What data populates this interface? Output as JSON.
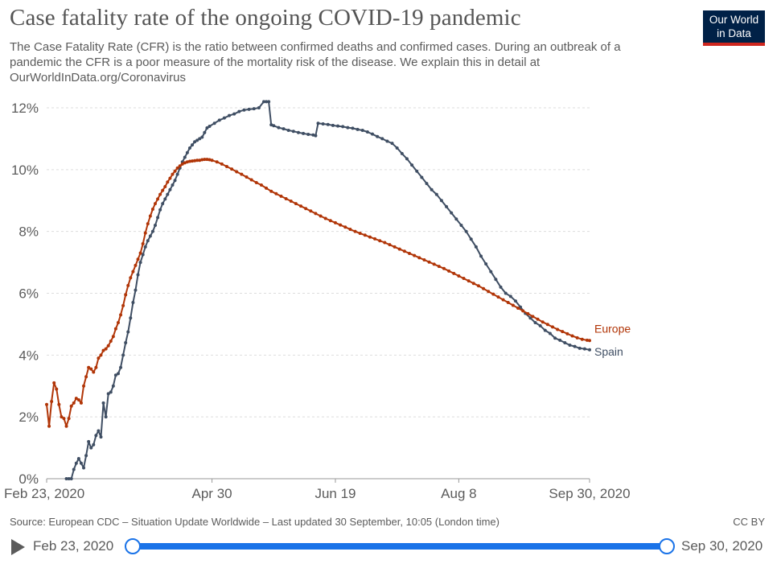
{
  "header": {
    "title": "Case fatality rate of the ongoing COVID-19 pandemic",
    "subtitle": "The Case Fatality Rate (CFR) is the ratio between confirmed deaths and confirmed cases. During an outbreak of a pandemic the CFR is a poor measure of the mortality risk of the disease. We explain this in detail at OurWorldInData.org/Coronavirus",
    "logo_line1": "Our World",
    "logo_line2": "in Data"
  },
  "colors": {
    "europe": "#b13507",
    "spain": "#3f4e63",
    "grid": "#dddddd",
    "axis_text": "#5b5b5b",
    "accent": "#1a73e8"
  },
  "chart_data": {
    "type": "line",
    "title": "Case fatality rate of the ongoing COVID-19 pandemic",
    "xlabel": "",
    "ylabel": "",
    "x_unit": "days since Feb 23, 2020",
    "xlim": [
      0,
      220
    ],
    "ylim": [
      0,
      12
    ],
    "y_ticks": [
      0,
      2,
      4,
      6,
      8,
      10,
      12
    ],
    "y_tick_labels": [
      "0%",
      "2%",
      "4%",
      "6%",
      "8%",
      "10%",
      "12%"
    ],
    "x_ticks": [
      0,
      67,
      117,
      167,
      220
    ],
    "x_tick_labels": [
      "Feb 23, 2020",
      "Apr 30",
      "Jun 19",
      "Aug 8",
      "Sep 30, 2020"
    ],
    "grid": true,
    "series": [
      {
        "name": "Spain",
        "color": "#3f4e63",
        "points": [
          [
            8,
            0.0
          ],
          [
            9,
            0.0
          ],
          [
            10,
            0.0
          ],
          [
            11,
            0.3
          ],
          [
            12,
            0.5
          ],
          [
            13,
            0.65
          ],
          [
            14,
            0.5
          ],
          [
            15,
            0.35
          ],
          [
            16,
            0.75
          ],
          [
            17,
            1.2
          ],
          [
            18,
            1.0
          ],
          [
            19,
            1.1
          ],
          [
            20,
            1.4
          ],
          [
            21,
            1.55
          ],
          [
            22,
            1.35
          ],
          [
            23,
            2.45
          ],
          [
            24,
            2.0
          ],
          [
            25,
            2.75
          ],
          [
            26,
            2.8
          ],
          [
            27,
            3.0
          ],
          [
            28,
            3.35
          ],
          [
            29,
            3.4
          ],
          [
            30,
            3.6
          ],
          [
            31,
            4.0
          ],
          [
            32,
            4.4
          ],
          [
            33,
            4.75
          ],
          [
            34,
            5.2
          ],
          [
            35,
            5.7
          ],
          [
            36,
            6.1
          ],
          [
            37,
            6.6
          ],
          [
            38,
            7.0
          ],
          [
            39,
            7.25
          ],
          [
            40,
            7.5
          ],
          [
            41,
            7.7
          ],
          [
            42,
            7.85
          ],
          [
            43,
            8.0
          ],
          [
            44,
            8.2
          ],
          [
            45,
            8.45
          ],
          [
            46,
            8.7
          ],
          [
            47,
            8.9
          ],
          [
            48,
            9.05
          ],
          [
            49,
            9.2
          ],
          [
            50,
            9.35
          ],
          [
            51,
            9.5
          ],
          [
            52,
            9.65
          ],
          [
            53,
            9.85
          ],
          [
            54,
            10.05
          ],
          [
            55,
            10.25
          ],
          [
            56,
            10.4
          ],
          [
            57,
            10.55
          ],
          [
            58,
            10.7
          ],
          [
            59,
            10.8
          ],
          [
            60,
            10.9
          ],
          [
            61,
            10.95
          ],
          [
            62,
            11.0
          ],
          [
            63,
            11.05
          ],
          [
            64,
            11.2
          ],
          [
            65,
            11.35
          ],
          [
            66,
            11.4
          ],
          [
            68,
            11.5
          ],
          [
            70,
            11.6
          ],
          [
            72,
            11.67
          ],
          [
            74,
            11.75
          ],
          [
            76,
            11.8
          ],
          [
            78,
            11.88
          ],
          [
            80,
            11.93
          ],
          [
            82,
            11.95
          ],
          [
            84,
            11.97
          ],
          [
            86,
            12.0
          ],
          [
            88,
            12.2
          ],
          [
            89,
            12.2
          ],
          [
            90,
            12.2
          ],
          [
            91,
            11.45
          ],
          [
            92,
            11.42
          ],
          [
            94,
            11.36
          ],
          [
            96,
            11.32
          ],
          [
            98,
            11.27
          ],
          [
            100,
            11.24
          ],
          [
            102,
            11.2
          ],
          [
            104,
            11.17
          ],
          [
            106,
            11.14
          ],
          [
            108,
            11.12
          ],
          [
            109,
            11.1
          ],
          [
            110,
            11.5
          ],
          [
            112,
            11.48
          ],
          [
            114,
            11.46
          ],
          [
            116,
            11.43
          ],
          [
            118,
            11.41
          ],
          [
            120,
            11.39
          ],
          [
            122,
            11.36
          ],
          [
            124,
            11.34
          ],
          [
            126,
            11.3
          ],
          [
            128,
            11.27
          ],
          [
            130,
            11.22
          ],
          [
            132,
            11.15
          ],
          [
            134,
            11.07
          ],
          [
            136,
            11.0
          ],
          [
            138,
            10.92
          ],
          [
            140,
            10.85
          ],
          [
            142,
            10.7
          ],
          [
            144,
            10.52
          ],
          [
            146,
            10.35
          ],
          [
            148,
            10.15
          ],
          [
            150,
            9.95
          ],
          [
            152,
            9.75
          ],
          [
            154,
            9.55
          ],
          [
            156,
            9.35
          ],
          [
            158,
            9.2
          ],
          [
            160,
            9.0
          ],
          [
            162,
            8.8
          ],
          [
            164,
            8.6
          ],
          [
            166,
            8.4
          ],
          [
            168,
            8.2
          ],
          [
            170,
            8.0
          ],
          [
            172,
            7.75
          ],
          [
            174,
            7.5
          ],
          [
            176,
            7.2
          ],
          [
            178,
            6.95
          ],
          [
            180,
            6.7
          ],
          [
            182,
            6.45
          ],
          [
            184,
            6.2
          ],
          [
            186,
            6.0
          ],
          [
            188,
            5.9
          ],
          [
            190,
            5.75
          ],
          [
            192,
            5.55
          ],
          [
            194,
            5.35
          ],
          [
            196,
            5.2
          ],
          [
            198,
            5.05
          ],
          [
            200,
            4.95
          ],
          [
            202,
            4.8
          ],
          [
            204,
            4.7
          ],
          [
            206,
            4.55
          ],
          [
            208,
            4.48
          ],
          [
            210,
            4.4
          ],
          [
            212,
            4.32
          ],
          [
            214,
            4.28
          ],
          [
            216,
            4.22
          ],
          [
            218,
            4.2
          ],
          [
            220,
            4.17
          ]
        ]
      },
      {
        "name": "Europe",
        "color": "#b13507",
        "points": [
          [
            0,
            2.4
          ],
          [
            1,
            1.7
          ],
          [
            2,
            2.5
          ],
          [
            3,
            3.1
          ],
          [
            4,
            2.9
          ],
          [
            5,
            2.4
          ],
          [
            6,
            2.0
          ],
          [
            7,
            1.95
          ],
          [
            8,
            1.7
          ],
          [
            9,
            1.95
          ],
          [
            10,
            2.35
          ],
          [
            11,
            2.45
          ],
          [
            12,
            2.6
          ],
          [
            13,
            2.55
          ],
          [
            14,
            2.45
          ],
          [
            15,
            3.0
          ],
          [
            16,
            3.3
          ],
          [
            17,
            3.6
          ],
          [
            18,
            3.55
          ],
          [
            19,
            3.45
          ],
          [
            20,
            3.6
          ],
          [
            21,
            3.9
          ],
          [
            22,
            4.0
          ],
          [
            23,
            4.15
          ],
          [
            24,
            4.2
          ],
          [
            25,
            4.3
          ],
          [
            26,
            4.45
          ],
          [
            27,
            4.6
          ],
          [
            28,
            4.85
          ],
          [
            29,
            5.05
          ],
          [
            30,
            5.3
          ],
          [
            31,
            5.6
          ],
          [
            32,
            5.95
          ],
          [
            33,
            6.25
          ],
          [
            34,
            6.5
          ],
          [
            35,
            6.7
          ],
          [
            36,
            6.9
          ],
          [
            37,
            7.1
          ],
          [
            38,
            7.3
          ],
          [
            39,
            7.6
          ],
          [
            40,
            7.95
          ],
          [
            41,
            8.25
          ],
          [
            42,
            8.5
          ],
          [
            43,
            8.72
          ],
          [
            44,
            8.9
          ],
          [
            45,
            9.05
          ],
          [
            46,
            9.2
          ],
          [
            47,
            9.33
          ],
          [
            48,
            9.45
          ],
          [
            49,
            9.6
          ],
          [
            50,
            9.72
          ],
          [
            51,
            9.85
          ],
          [
            52,
            9.95
          ],
          [
            53,
            10.05
          ],
          [
            54,
            10.12
          ],
          [
            55,
            10.18
          ],
          [
            56,
            10.22
          ],
          [
            57,
            10.25
          ],
          [
            58,
            10.27
          ],
          [
            59,
            10.28
          ],
          [
            60,
            10.29
          ],
          [
            61,
            10.3
          ],
          [
            62,
            10.3
          ],
          [
            63,
            10.32
          ],
          [
            64,
            10.33
          ],
          [
            65,
            10.33
          ],
          [
            66,
            10.32
          ],
          [
            67,
            10.3
          ],
          [
            69,
            10.25
          ],
          [
            71,
            10.18
          ],
          [
            73,
            10.1
          ],
          [
            75,
            10.02
          ],
          [
            77,
            9.93
          ],
          [
            79,
            9.85
          ],
          [
            81,
            9.76
          ],
          [
            83,
            9.67
          ],
          [
            85,
            9.58
          ],
          [
            87,
            9.5
          ],
          [
            89,
            9.4
          ],
          [
            91,
            9.3
          ],
          [
            93,
            9.22
          ],
          [
            95,
            9.14
          ],
          [
            97,
            9.06
          ],
          [
            99,
            8.98
          ],
          [
            101,
            8.9
          ],
          [
            103,
            8.82
          ],
          [
            105,
            8.74
          ],
          [
            107,
            8.66
          ],
          [
            109,
            8.58
          ],
          [
            111,
            8.5
          ],
          [
            113,
            8.42
          ],
          [
            115,
            8.35
          ],
          [
            117,
            8.28
          ],
          [
            119,
            8.21
          ],
          [
            121,
            8.14
          ],
          [
            123,
            8.07
          ],
          [
            125,
            8.0
          ],
          [
            127,
            7.94
          ],
          [
            129,
            7.88
          ],
          [
            131,
            7.82
          ],
          [
            133,
            7.76
          ],
          [
            135,
            7.7
          ],
          [
            137,
            7.64
          ],
          [
            139,
            7.57
          ],
          [
            141,
            7.5
          ],
          [
            143,
            7.43
          ],
          [
            145,
            7.36
          ],
          [
            147,
            7.29
          ],
          [
            149,
            7.22
          ],
          [
            151,
            7.15
          ],
          [
            153,
            7.08
          ],
          [
            155,
            7.01
          ],
          [
            157,
            6.94
          ],
          [
            159,
            6.87
          ],
          [
            161,
            6.8
          ],
          [
            163,
            6.72
          ],
          [
            165,
            6.64
          ],
          [
            167,
            6.56
          ],
          [
            169,
            6.48
          ],
          [
            171,
            6.4
          ],
          [
            173,
            6.32
          ],
          [
            175,
            6.24
          ],
          [
            177,
            6.15
          ],
          [
            179,
            6.06
          ],
          [
            181,
            5.97
          ],
          [
            183,
            5.88
          ],
          [
            185,
            5.79
          ],
          [
            187,
            5.7
          ],
          [
            189,
            5.61
          ],
          [
            191,
            5.52
          ],
          [
            193,
            5.43
          ],
          [
            195,
            5.34
          ],
          [
            197,
            5.25
          ],
          [
            199,
            5.16
          ],
          [
            201,
            5.07
          ],
          [
            203,
            4.99
          ],
          [
            205,
            4.91
          ],
          [
            207,
            4.83
          ],
          [
            209,
            4.76
          ],
          [
            211,
            4.69
          ],
          [
            213,
            4.62
          ],
          [
            215,
            4.56
          ],
          [
            217,
            4.51
          ],
          [
            219,
            4.48
          ],
          [
            220,
            4.47
          ]
        ]
      }
    ]
  },
  "footer": {
    "source": "Source: European CDC – Situation Update Worldwide – Last updated 30 September, 10:05 (London time)",
    "license": "CC BY"
  },
  "timeline": {
    "start_label": "Feb 23, 2020",
    "end_label": "Sep 30, 2020",
    "start_fraction": 0,
    "end_fraction": 1
  }
}
